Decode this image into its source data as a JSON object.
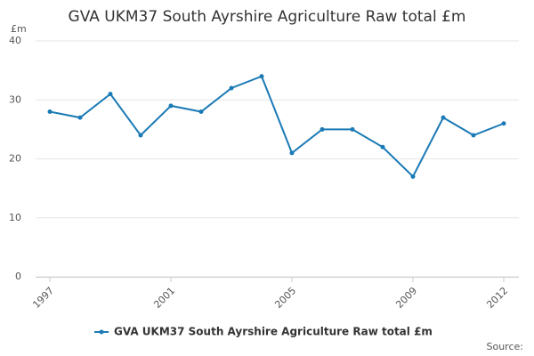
{
  "chart_data": {
    "type": "line",
    "title": "GVA UKM37 South Ayrshire Agriculture Raw total £m",
    "y_label": "£m",
    "source": "Source:",
    "x": [
      1997,
      1998,
      1999,
      2000,
      2001,
      2002,
      2003,
      2004,
      2005,
      2006,
      2007,
      2008,
      2009,
      2010,
      2011,
      2012
    ],
    "series": [
      {
        "name": "GVA UKM37 South Ayrshire Agriculture Raw total £m",
        "color": "#1a7ab5",
        "values": [
          28,
          27,
          31,
          24,
          29,
          28,
          32,
          34,
          21,
          25,
          25,
          22,
          17,
          27,
          24,
          26
        ]
      }
    ],
    "xlim": [
      1997,
      2012
    ],
    "xticks": [
      1997,
      2001,
      2005,
      2009,
      2012
    ],
    "ylim": [
      0,
      40
    ],
    "yticks": [
      0,
      10,
      20,
      30,
      40
    ],
    "grid": true
  }
}
